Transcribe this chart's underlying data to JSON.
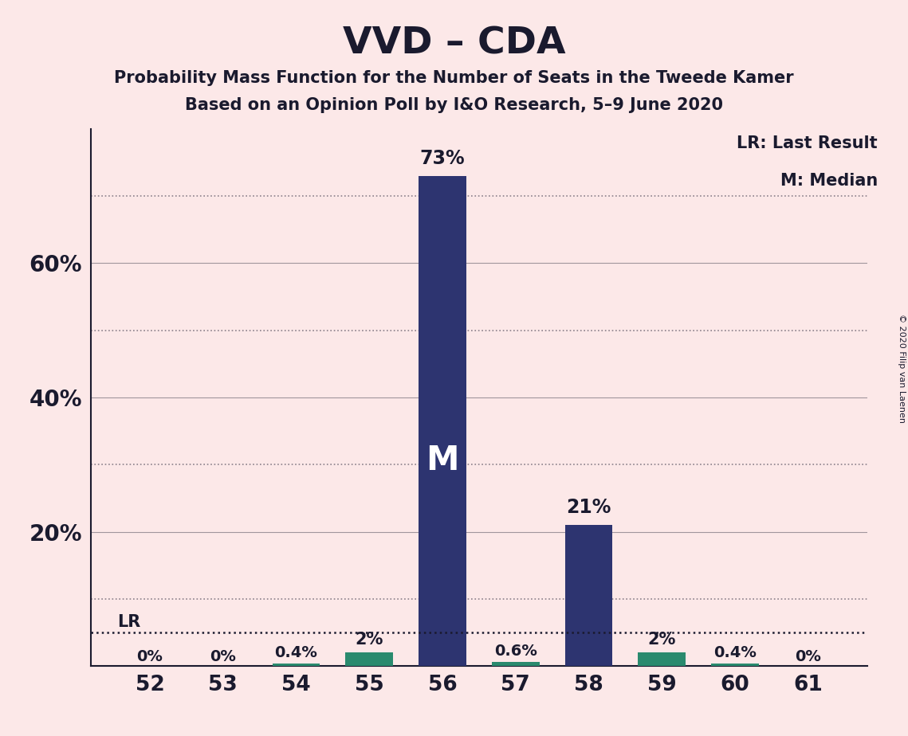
{
  "title": "VVD – CDA",
  "subtitle1": "Probability Mass Function for the Number of Seats in the Tweede Kamer",
  "subtitle2": "Based on an Opinion Poll by I&O Research, 5–9 June 2020",
  "copyright": "© 2020 Filip van Laenen",
  "categories": [
    52,
    53,
    54,
    55,
    56,
    57,
    58,
    59,
    60,
    61
  ],
  "values": [
    0.0,
    0.0,
    0.4,
    2.0,
    73.0,
    0.6,
    21.0,
    2.0,
    0.4,
    0.0
  ],
  "labels": [
    "0%",
    "0%",
    "0.4%",
    "2%",
    "73%",
    "0.6%",
    "21%",
    "2%",
    "0.4%",
    "0%"
  ],
  "bar_colors_navy": [
    false,
    false,
    false,
    false,
    true,
    false,
    true,
    false,
    false,
    false
  ],
  "bar_colors_teal": [
    false,
    false,
    true,
    true,
    false,
    true,
    false,
    true,
    true,
    false
  ],
  "bar_colors_tiny": [
    true,
    true,
    false,
    false,
    false,
    false,
    false,
    false,
    false,
    true
  ],
  "navy_color": "#2d3470",
  "teal_color": "#2a8a6e",
  "tiny_color": "#8080aa",
  "background_color": "#fce8e8",
  "text_color": "#1a1a2e",
  "lr_value": 5.0,
  "median_seat": 56,
  "ylim": [
    0,
    80
  ],
  "solid_yticks": [
    20,
    40,
    60
  ],
  "dotted_yticks": [
    10,
    30,
    50,
    70
  ],
  "ytick_labels_pos": [
    20,
    40,
    60
  ],
  "ytick_labels_val": [
    "20%",
    "40%",
    "60%"
  ],
  "legend_lr": "LR: Last Result",
  "legend_m": "M: Median"
}
